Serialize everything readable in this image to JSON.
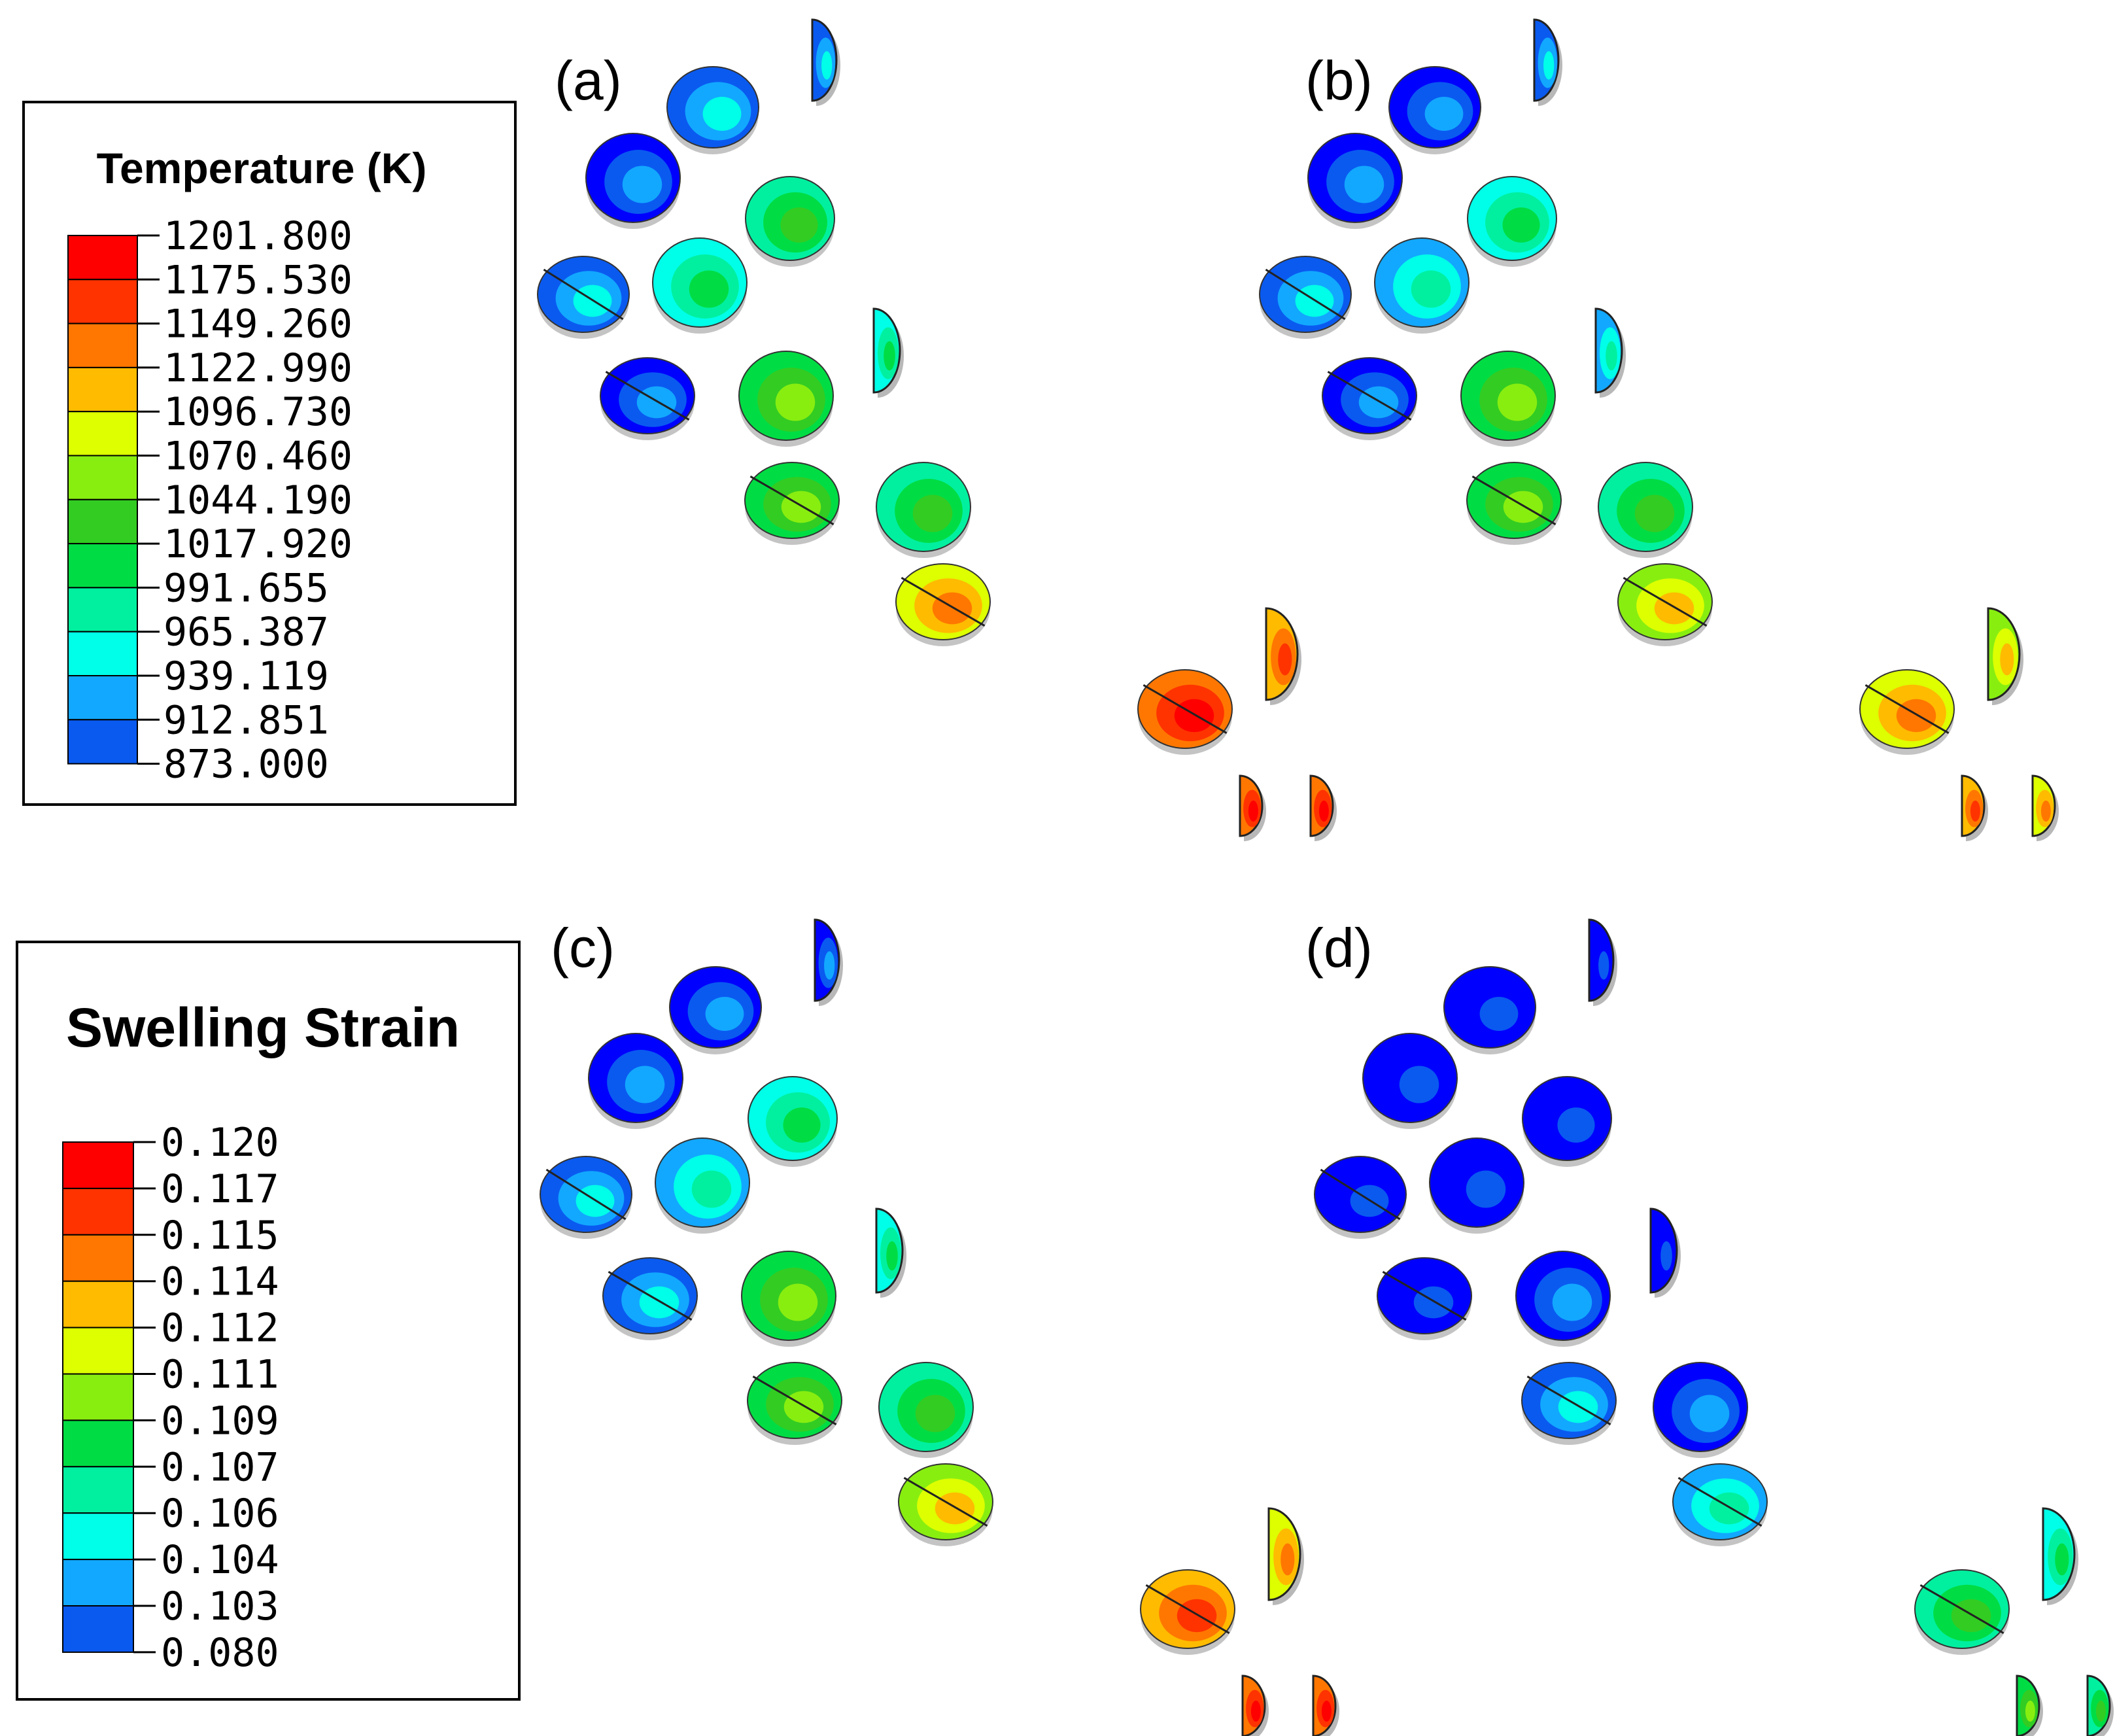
{
  "colors": [
    "#0000ff",
    "#0a5af0",
    "#12a8ff",
    "#00ffe8",
    "#00f0a0",
    "#00dd44",
    "#33cc22",
    "#88ee10",
    "#ddff00",
    "#ffbb00",
    "#ff7700",
    "#ff3300",
    "#ff0000"
  ],
  "legends": [
    {
      "id": "temperature",
      "title": "Temperature (K)",
      "values": [
        "1201.800",
        "1175.530",
        "1149.260",
        "1122.990",
        "1096.730",
        "1070.460",
        "1044.190",
        "1017.920",
        "991.655",
        "965.387",
        "939.119",
        "912.851",
        "873.000"
      ]
    },
    {
      "id": "swelling",
      "title": "Swelling Strain",
      "values": [
        "0.120",
        "0.117",
        "0.115",
        "0.114",
        "0.112",
        "0.111",
        "0.109",
        "0.107",
        "0.106",
        "0.104",
        "0.103",
        "0.080"
      ]
    }
  ],
  "panels": [
    {
      "label": "(a)",
      "levels": [
        2,
        2,
        1,
        2,
        5,
        4,
        1,
        4,
        6,
        6,
        5,
        9,
        10,
        11,
        11,
        11
      ]
    },
    {
      "label": "(b)",
      "levels": [
        1,
        2,
        1,
        2,
        4,
        3,
        1,
        3,
        6,
        6,
        5,
        8,
        8,
        9,
        9,
        10
      ]
    },
    {
      "label": "(c)",
      "levels": [
        1,
        1,
        1,
        2,
        4,
        3,
        2,
        4,
        6,
        6,
        5,
        8,
        9,
        10,
        11,
        11
      ]
    },
    {
      "label": "(d)",
      "levels": [
        0,
        0,
        0,
        0,
        0,
        0,
        0,
        0,
        1,
        2,
        1,
        3,
        4,
        5,
        5,
        6
      ]
    }
  ]
}
